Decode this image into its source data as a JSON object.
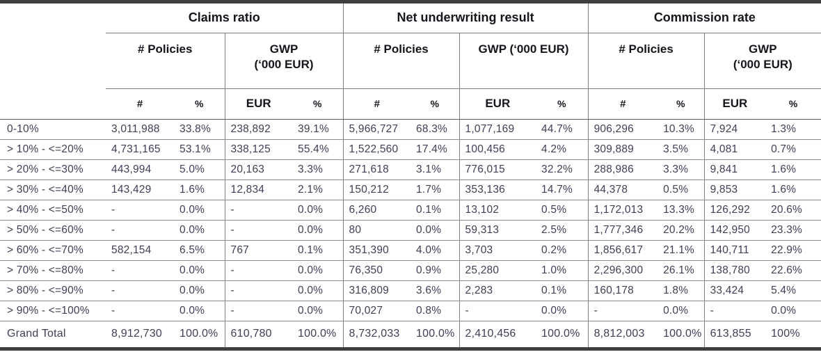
{
  "table": {
    "corner_label": "",
    "groups": [
      {
        "title": "Claims ratio",
        "policies_header": "# Policies",
        "gwp_header": "GWP\n(‘000 EUR)",
        "measures": {
          "count": "#",
          "count_pct": "%",
          "eur": "EUR",
          "eur_pct": "%"
        }
      },
      {
        "title": "Net underwriting result",
        "policies_header": "# Policies",
        "gwp_header": "GWP (‘000 EUR)",
        "measures": {
          "count": "#",
          "count_pct": "%",
          "eur": "EUR",
          "eur_pct": "%"
        }
      },
      {
        "title": "Commission rate",
        "policies_header": "# Policies",
        "gwp_header": "GWP\n(‘000 EUR)",
        "measures": {
          "count": "#",
          "count_pct": "%",
          "eur": "EUR",
          "eur_pct": "%"
        }
      }
    ],
    "rows": [
      {
        "label": "0-10%",
        "values": [
          "3,011,988",
          "33.8%",
          "238,892",
          "39.1%",
          "5,966,727",
          "68.3%",
          "1,077,169",
          "44.7%",
          "906,296",
          "10.3%",
          "7,924",
          "1.3%"
        ]
      },
      {
        "label": "> 10% - <=20%",
        "values": [
          "4,731,165",
          "53.1%",
          "338,125",
          "55.4%",
          "1,522,560",
          "17.4%",
          "100,456",
          "4.2%",
          "309,889",
          "3.5%",
          "4,081",
          "0.7%"
        ]
      },
      {
        "label": "> 20% - <=30%",
        "values": [
          "443,994",
          "5.0%",
          "20,163",
          "3.3%",
          "271,618",
          "3.1%",
          "776,015",
          "32.2%",
          "288,986",
          "3.3%",
          "9,841",
          "1.6%"
        ]
      },
      {
        "label": "> 30% - <=40%",
        "values": [
          "143,429",
          "1.6%",
          "12,834",
          "2.1%",
          "150,212",
          "1.7%",
          "353,136",
          "14.7%",
          "44,378",
          "0.5%",
          "9,853",
          "1.6%"
        ]
      },
      {
        "label": "> 40% - <=50%",
        "values": [
          "-",
          "0.0%",
          "-",
          "0.0%",
          "6,260",
          "0.1%",
          "13,102",
          "0.5%",
          "1,172,013",
          "13.3%",
          "126,292",
          "20.6%"
        ]
      },
      {
        "label": "> 50% - <=60%",
        "values": [
          "-",
          "0.0%",
          "-",
          "0.0%",
          "80",
          "0.0%",
          "59,313",
          "2.5%",
          "1,777,346",
          "20.2%",
          "142,950",
          "23.3%"
        ]
      },
      {
        "label": "> 60% - <=70%",
        "values": [
          "582,154",
          "6.5%",
          "767",
          "0.1%",
          "351,390",
          "4.0%",
          "3,703",
          "0.2%",
          "1,856,617",
          "21.1%",
          "140,711",
          "22.9%"
        ]
      },
      {
        "label": "> 70% - <=80%",
        "values": [
          "-",
          "0.0%",
          "-",
          "0.0%",
          "76,350",
          "0.9%",
          "25,280",
          "1.0%",
          "2,296,300",
          "26.1%",
          "138,780",
          "22.6%"
        ]
      },
      {
        "label": "> 80% - <=90%",
        "values": [
          "-",
          "0.0%",
          "-",
          "0.0%",
          "316,809",
          "3.6%",
          "2,283",
          "0.1%",
          "160,178",
          "1.8%",
          "33,424",
          "5.4%"
        ]
      },
      {
        "label": "> 90% - <=100%",
        "values": [
          "-",
          "0.0%",
          "-",
          "0.0%",
          "70,027",
          "0.8%",
          "-",
          "0.0%",
          "-",
          "0.0%",
          "-",
          "0.0%"
        ]
      }
    ],
    "grand_total": {
      "label": "Grand Total",
      "values": [
        "8,912,730",
        "100.0%",
        "610,780",
        "100.0%",
        "8,732,033",
        "100.0%",
        "2,410,456",
        "100.0%",
        "8,812,003",
        "100.0%",
        "613,855",
        "100%"
      ]
    }
  },
  "colors": {
    "heavy_rule": "#3f3f3f",
    "light_rule": "#7d7d7d",
    "header_text": "#15151d",
    "body_text": "#3e3e57"
  }
}
